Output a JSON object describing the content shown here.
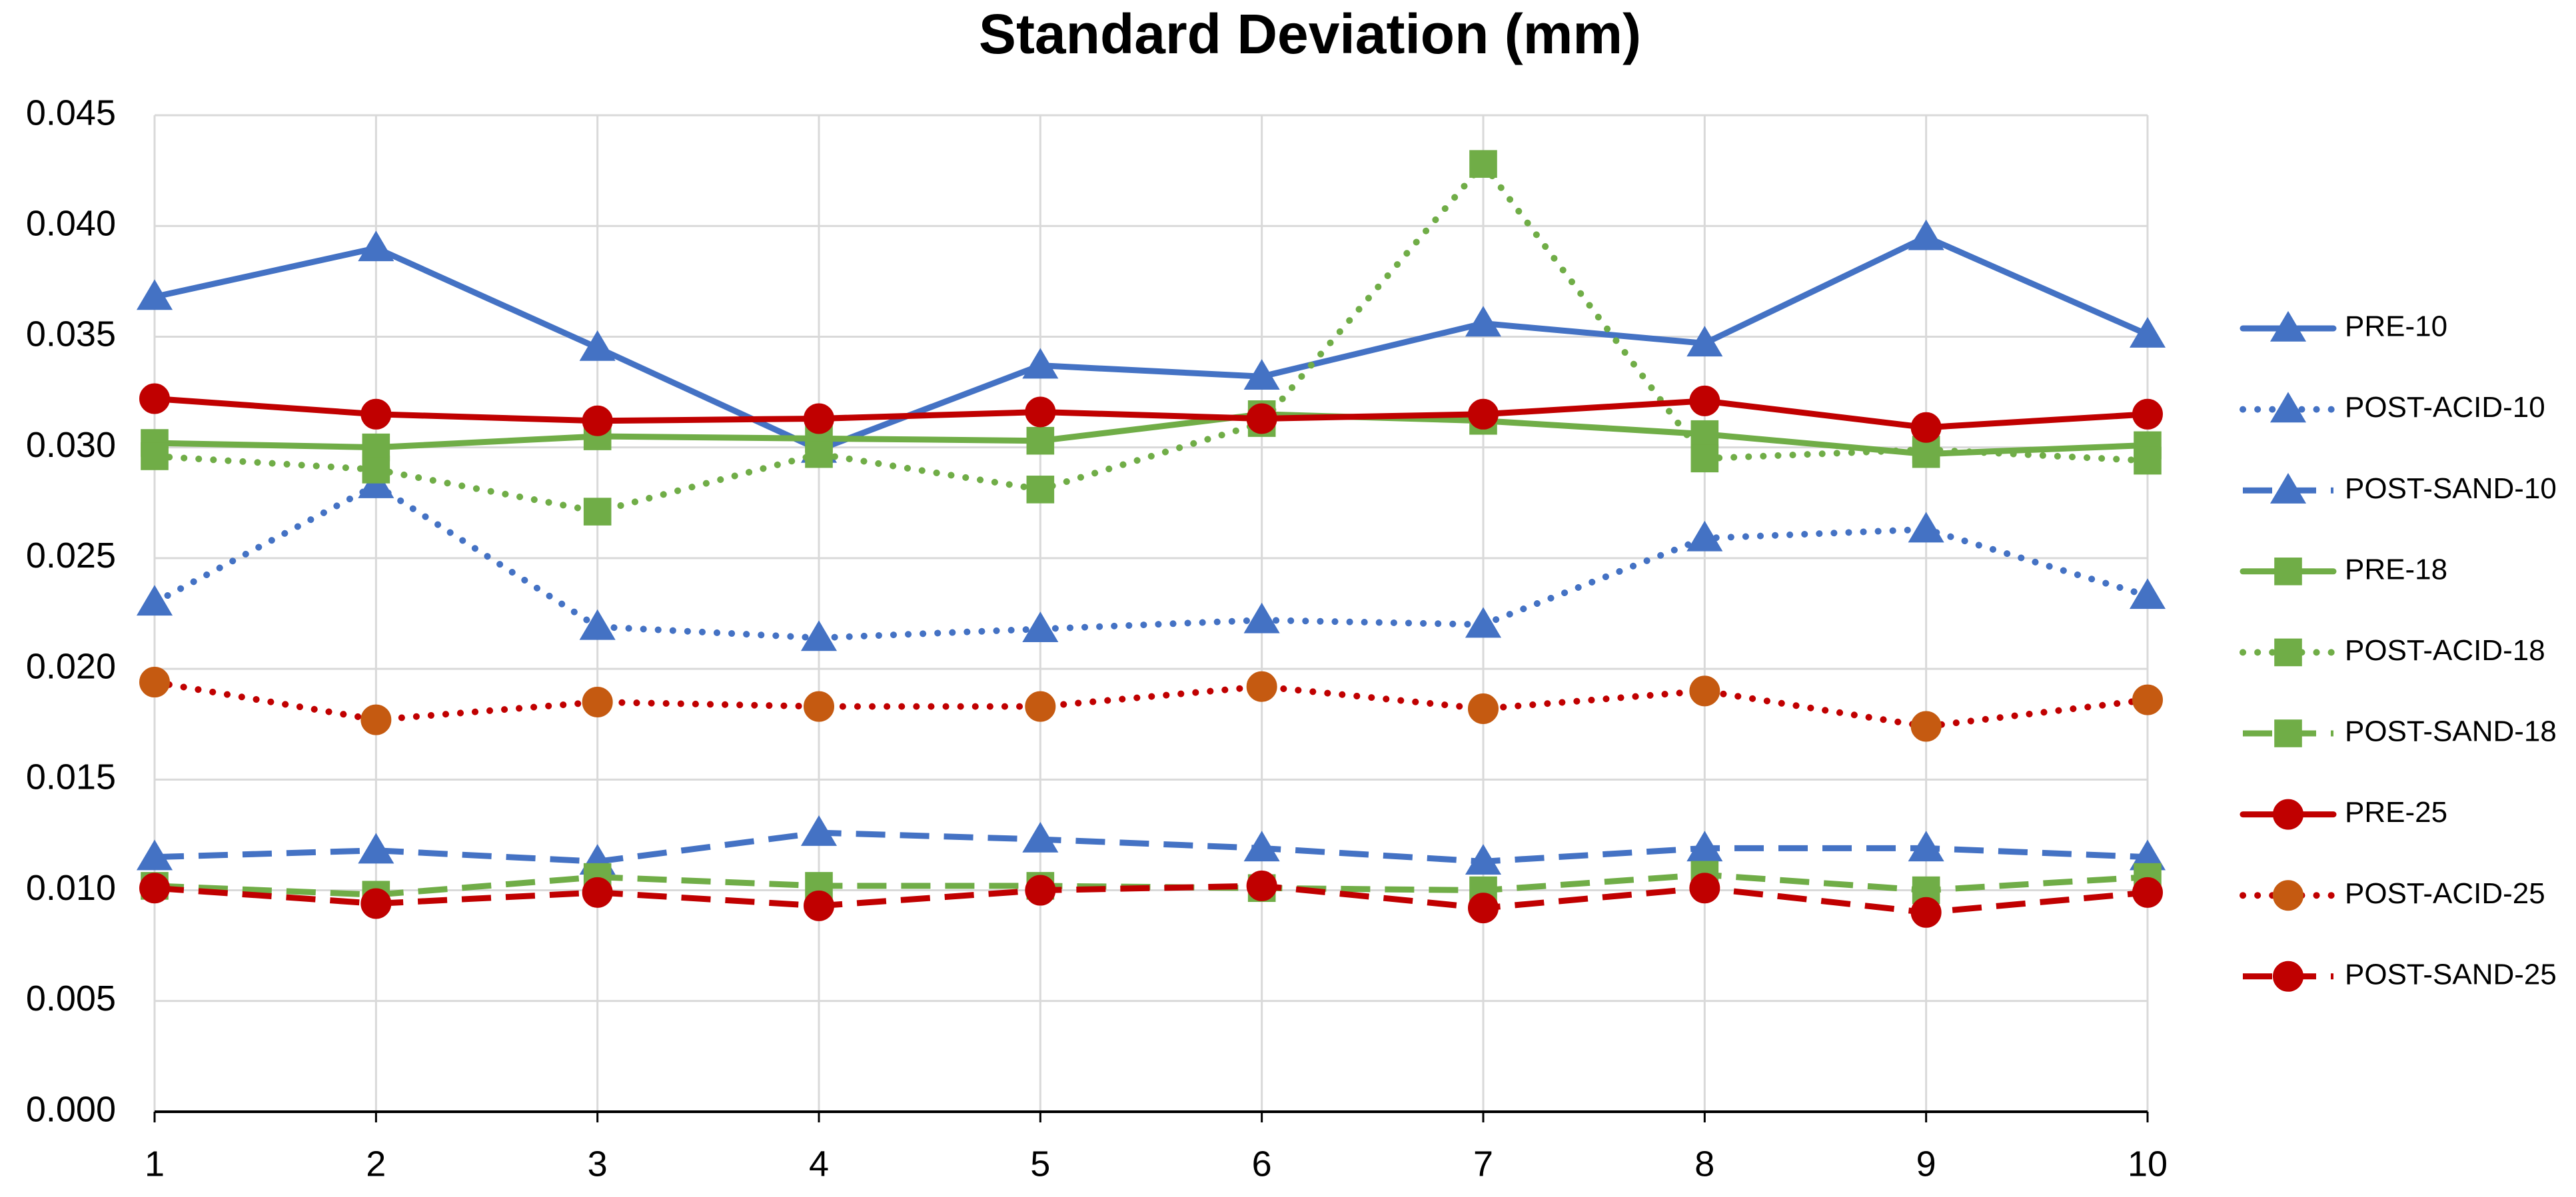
{
  "chart_data": {
    "type": "line",
    "title": "Standard Deviation (mm)",
    "x": [
      1,
      2,
      3,
      4,
      5,
      6,
      7,
      8,
      9,
      10
    ],
    "xlim": [
      1,
      10
    ],
    "xticks": [
      1,
      2,
      3,
      4,
      5,
      6,
      7,
      8,
      9,
      10
    ],
    "ylim": [
      0,
      0.045
    ],
    "yticks": [
      {
        "value": 0,
        "label": "0.000"
      },
      {
        "value": 0.005,
        "label": "0.005"
      },
      {
        "value": 0.01,
        "label": "0.010"
      },
      {
        "value": 0.015,
        "label": "0.015"
      },
      {
        "value": 0.02,
        "label": "0.020"
      },
      {
        "value": 0.025,
        "label": "0.025"
      },
      {
        "value": 0.03,
        "label": "0.030"
      },
      {
        "value": 0.035,
        "label": "0.035"
      },
      {
        "value": 0.04,
        "label": "0.040"
      },
      {
        "value": 0.045,
        "label": "0.045"
      }
    ],
    "grid": true,
    "legend": "right",
    "series": [
      {
        "name": "PRE-10",
        "color": "#4472c4",
        "dash": "solid",
        "marker": "triangle",
        "values": [
          0.0368,
          0.039,
          0.0345,
          0.0299,
          0.0337,
          0.0332,
          0.0356,
          0.0347,
          0.0395,
          0.0351
        ]
      },
      {
        "name": "POST-ACID-10",
        "color": "#4472c4",
        "dash": "dot",
        "marker": "triangle",
        "values": [
          0.023,
          0.0283,
          0.0219,
          0.0214,
          0.0218,
          0.0222,
          0.022,
          0.0259,
          0.0263,
          0.0233
        ]
      },
      {
        "name": "POST-SAND-10",
        "color": "#4472c4",
        "dash": "dash",
        "marker": "triangle",
        "values": [
          0.0115,
          0.0118,
          0.0113,
          0.0126,
          0.0123,
          0.0119,
          0.0113,
          0.0119,
          0.0119,
          0.0115
        ]
      },
      {
        "name": "PRE-18",
        "color": "#70ad47",
        "dash": "solid",
        "marker": "square",
        "values": [
          0.0302,
          0.03,
          0.0305,
          0.0304,
          0.0303,
          0.0315,
          0.0312,
          0.0306,
          0.0297,
          0.0301
        ]
      },
      {
        "name": "POST-ACID-18",
        "color": "#70ad47",
        "dash": "dot",
        "marker": "square",
        "values": [
          0.0296,
          0.029,
          0.0271,
          0.0297,
          0.0281,
          0.0311,
          0.0428,
          0.0295,
          0.0299,
          0.0294
        ]
      },
      {
        "name": "POST-SAND-18",
        "color": "#70ad47",
        "dash": "dash",
        "marker": "square",
        "values": [
          0.0102,
          0.0098,
          0.0106,
          0.0102,
          0.0102,
          0.0101,
          0.01,
          0.0107,
          0.01,
          0.0106
        ]
      },
      {
        "name": "PRE-25",
        "color": "#c00000",
        "dash": "solid",
        "marker": "circle",
        "values": [
          0.0322,
          0.0315,
          0.0312,
          0.0313,
          0.0316,
          0.0313,
          0.0315,
          0.0321,
          0.0309,
          0.0315
        ]
      },
      {
        "name": "POST-ACID-25",
        "color": "#c00000",
        "marker_color": "#c55a11",
        "dash": "dot",
        "marker": "circle",
        "values": [
          0.0194,
          0.0177,
          0.0185,
          0.0183,
          0.0183,
          0.0192,
          0.0182,
          0.019,
          0.0174,
          0.0186
        ]
      },
      {
        "name": "POST-SAND-25",
        "color": "#c00000",
        "dash": "dash",
        "marker": "circle",
        "values": [
          0.0101,
          0.0094,
          0.0099,
          0.0093,
          0.01,
          0.0102,
          0.0092,
          0.0101,
          0.009,
          0.0099
        ]
      }
    ]
  }
}
